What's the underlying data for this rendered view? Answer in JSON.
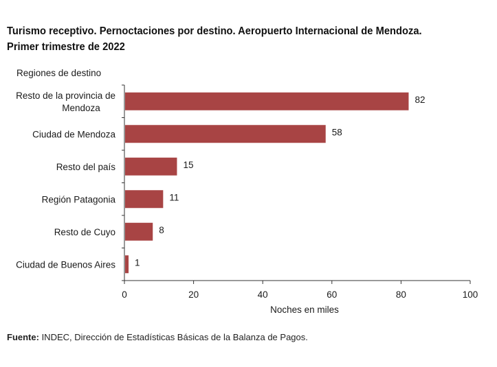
{
  "chart_data": {
    "type": "bar",
    "orientation": "horizontal",
    "title": "Turismo receptivo. Pernoctaciones por destino. Aeropuerto Internacional de Mendoza. Primer trimestre de 2022",
    "title_lines": [
      "Turismo receptivo. Pernoctaciones por destino. Aeropuerto Internacional de Mendoza.",
      "Primer trimestre de 2022"
    ],
    "ylabel": "Regiones de destino",
    "xlabel": "Noches en miles",
    "categories": [
      [
        "Resto de la provincia de",
        "Mendoza"
      ],
      [
        "Ciudad de Mendoza"
      ],
      [
        "Resto del país"
      ],
      [
        "Región Patagonia"
      ],
      [
        "Resto de Cuyo"
      ],
      [
        "Ciudad de Buenos Aires"
      ]
    ],
    "values": [
      82,
      58,
      15,
      11,
      8,
      1
    ],
    "data_labels": [
      "82",
      "58",
      "15",
      "11",
      "8",
      "1"
    ],
    "xlim": [
      0,
      100
    ],
    "xticks": [
      "0",
      "20",
      "40",
      "60",
      "80",
      "100"
    ],
    "grid": false,
    "bar_color": "#a84444"
  },
  "footer": {
    "source_label": "Fuente:",
    "source_text": " INDEC, Dirección de Estadísticas Básicas de la Balanza de Pagos."
  }
}
